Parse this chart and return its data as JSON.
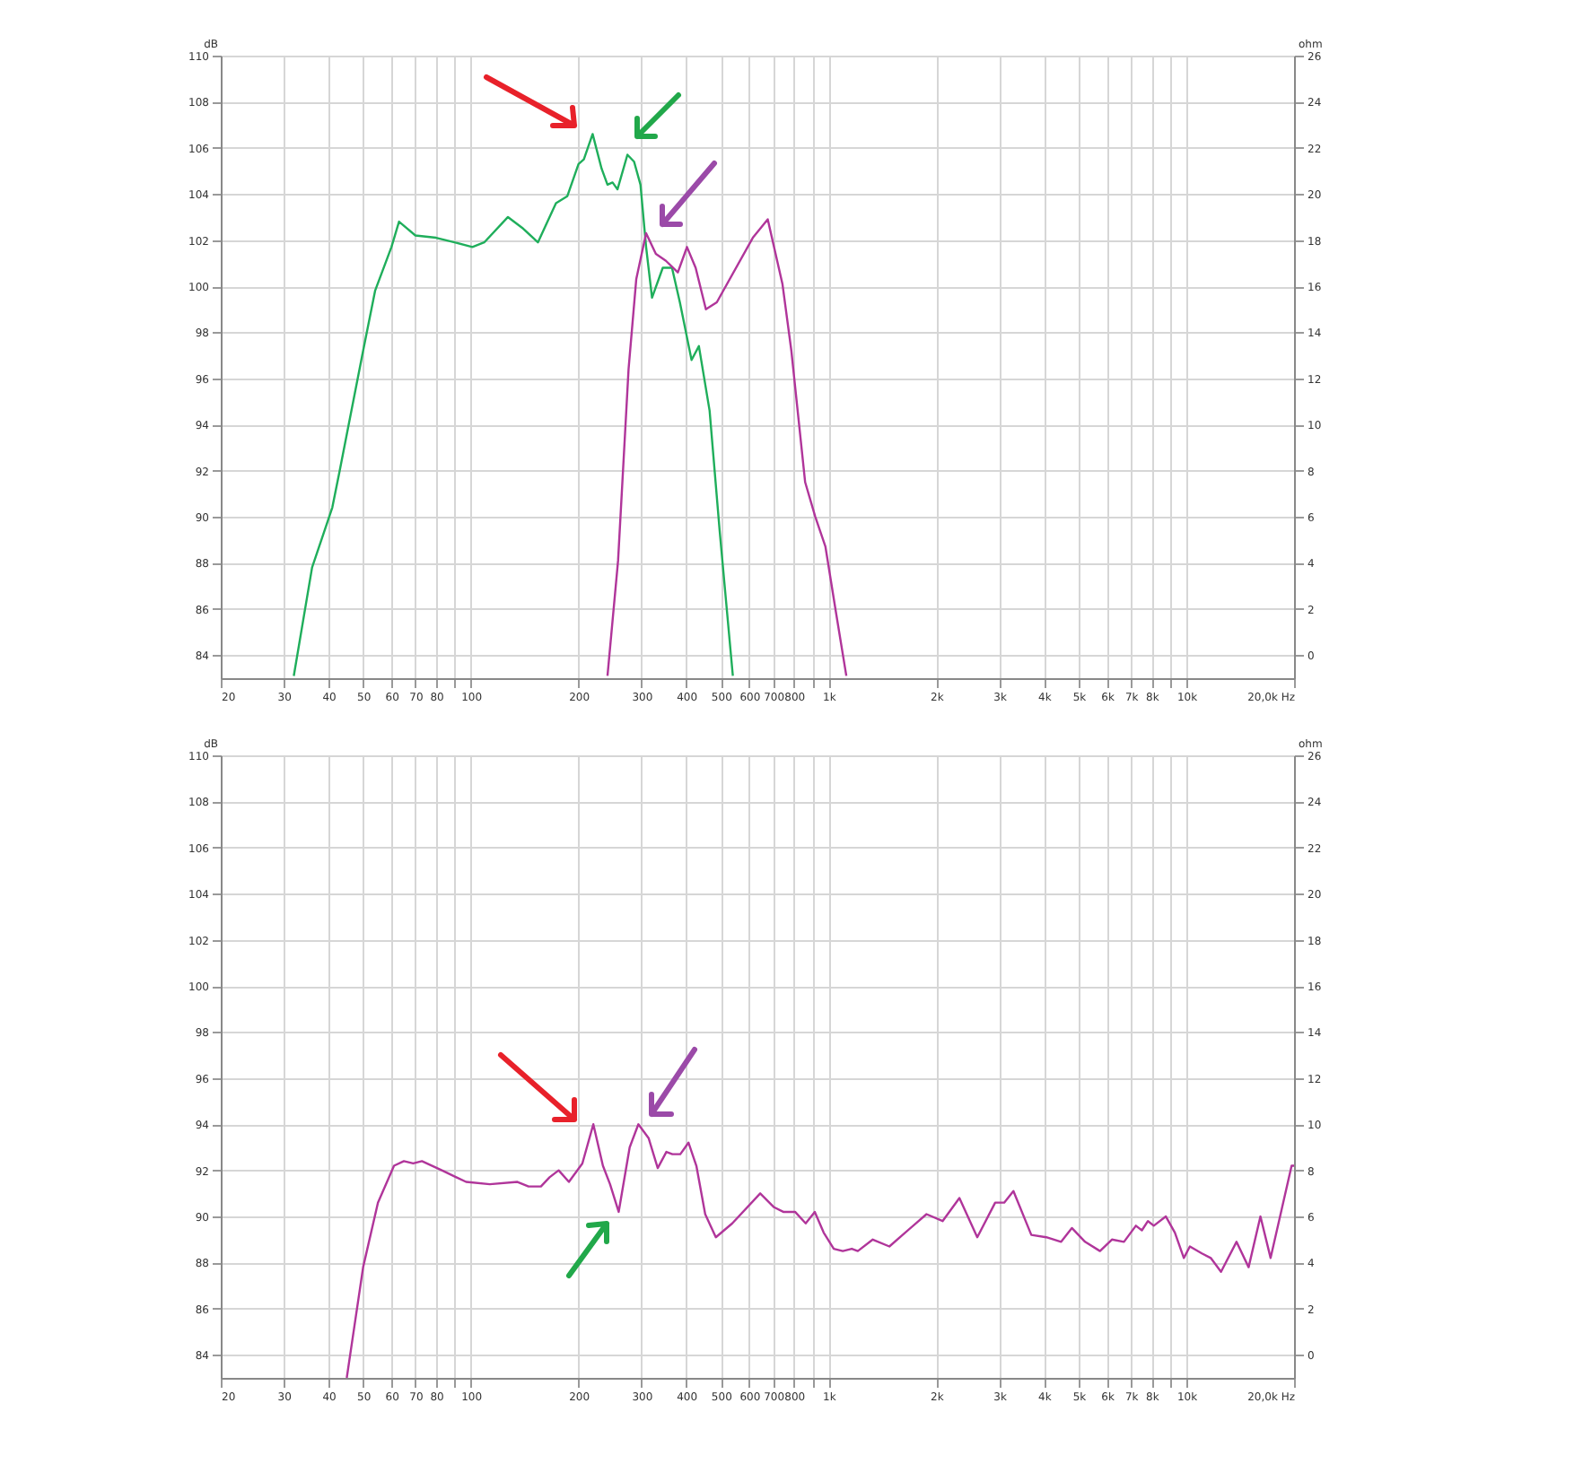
{
  "chart_data": [
    {
      "type": "line",
      "ylabel": "dB",
      "y2label": "ohm",
      "log": "x",
      "grid": true,
      "xlim": [
        20,
        20000
      ],
      "xticks": [
        20,
        30,
        40,
        50,
        60,
        70,
        80,
        {
          "value": 90,
          "label": null
        },
        {
          "value": 100,
          "label": "100"
        },
        200,
        300,
        400,
        500,
        600,
        700,
        800,
        {
          "value": 900,
          "label": null
        },
        {
          "value": 1000,
          "label": "1k"
        },
        {
          "value": 2000,
          "label": "2k"
        },
        {
          "value": 3000,
          "label": "3k"
        },
        {
          "value": 4000,
          "label": "4k"
        },
        {
          "value": 5000,
          "label": "5k"
        },
        {
          "value": 6000,
          "label": "6k"
        },
        {
          "value": 7000,
          "label": "7k"
        },
        {
          "value": 8000,
          "label": "8k"
        },
        {
          "value": 9000,
          "label": null
        },
        {
          "value": 10000,
          "label": "10k"
        },
        {
          "value": 20000,
          "label": "20,0k Hz"
        }
      ],
      "ylim": [
        83,
        110
      ],
      "yticks": [
        84,
        86,
        88,
        90,
        92,
        94,
        96,
        98,
        100,
        102,
        104,
        106,
        108,
        110
      ],
      "y2lim": [
        -1,
        26
      ],
      "y2ticks": [
        0,
        2,
        4,
        6,
        8,
        10,
        12,
        14,
        16,
        18,
        20,
        22,
        24,
        26
      ],
      "series": [
        {
          "color": "#1fae5b",
          "x": [
            32,
            36,
            41,
            43,
            50,
            54,
            60,
            63,
            70,
            80,
            90,
            101,
            109,
            127,
            140,
            154,
            173,
            186,
            200,
            207,
            219,
            232,
            241,
            249,
            257,
            274,
            286,
            298,
            309,
            321,
            344,
            365,
            384,
            414,
            434,
            465,
            496,
            540
          ],
          "values": [
            83.1,
            87.8,
            90.4,
            92.0,
            97.2,
            99.8,
            101.7,
            102.8,
            102.2,
            102.1,
            101.9,
            101.7,
            101.9,
            103.0,
            102.5,
            101.9,
            103.6,
            103.9,
            105.3,
            105.5,
            106.6,
            105.1,
            104.4,
            104.5,
            104.2,
            105.7,
            105.4,
            104.4,
            101.7,
            99.5,
            100.8,
            100.8,
            99.3,
            96.8,
            97.4,
            94.6,
            89.4,
            83.1
          ]
        },
        {
          "color": "#b0359a",
          "x": [
            241,
            258,
            276,
            290,
            309,
            329,
            351,
            379,
            402,
            425,
            454,
            487,
            614,
            676,
            743,
            787,
            860,
            918,
            980,
            1050,
            1121
          ],
          "values": [
            83.1,
            88.1,
            96.4,
            100.3,
            102.3,
            101.4,
            101.1,
            100.6,
            101.7,
            100.8,
            99.0,
            99.3,
            102.1,
            102.9,
            100.1,
            97.2,
            91.5,
            90.0,
            88.7,
            85.8,
            83.1
          ]
        }
      ]
    },
    {
      "type": "line",
      "ylabel": "dB",
      "y2label": "ohm",
      "log": "x",
      "grid": true,
      "xlim": [
        20,
        20000
      ],
      "xticks": [
        20,
        30,
        40,
        50,
        60,
        70,
        80,
        {
          "value": 90,
          "label": null
        },
        {
          "value": 100,
          "label": "100"
        },
        200,
        300,
        400,
        500,
        600,
        700,
        800,
        {
          "value": 900,
          "label": null
        },
        {
          "value": 1000,
          "label": "1k"
        },
        {
          "value": 2000,
          "label": "2k"
        },
        {
          "value": 3000,
          "label": "3k"
        },
        {
          "value": 4000,
          "label": "4k"
        },
        {
          "value": 5000,
          "label": "5k"
        },
        {
          "value": 6000,
          "label": "6k"
        },
        {
          "value": 7000,
          "label": "7k"
        },
        {
          "value": 8000,
          "label": "8k"
        },
        {
          "value": 9000,
          "label": null
        },
        {
          "value": 10000,
          "label": "10k"
        },
        {
          "value": 20000,
          "label": "20,0k Hz"
        }
      ],
      "ylim": [
        83,
        110
      ],
      "yticks": [
        84,
        86,
        88,
        90,
        92,
        94,
        96,
        98,
        100,
        102,
        104,
        106,
        108,
        110
      ],
      "y2lim": [
        -1,
        26
      ],
      "y2ticks": [
        0,
        2,
        4,
        6,
        8,
        10,
        12,
        14,
        16,
        18,
        20,
        22,
        24,
        26
      ],
      "series": [
        {
          "color": "#b0359a",
          "x": [
            45,
            50,
            55,
            61,
            65,
            69,
            73,
            83,
            97,
            113,
            135,
            145,
            157,
            166,
            176,
            188,
            205,
            220,
            234,
            245,
            259,
            278,
            294,
            314,
            333,
            352,
            366,
            385,
            406,
            427,
            452,
            484,
            538,
            644,
            704,
            747,
            806,
            863,
            915,
            969,
            1034,
            1096,
            1161,
            1207,
            1329,
            1479,
            1610,
            1878,
            2083,
            2321,
            2604,
            2922,
            3096,
            3286,
            3687,
            4059,
            4467,
            4786,
            5211,
            5736,
            6194,
            6693,
            7228,
            7512,
            7810,
            8110,
            8765,
            9290,
            9840,
            10230,
            11050,
            11700,
            12500,
            13810,
            14930,
            16110,
            17200,
            19690,
            20000
          ],
          "values": [
            83.0,
            87.8,
            90.6,
            92.2,
            92.4,
            92.3,
            92.4,
            92.0,
            91.5,
            91.4,
            91.5,
            91.3,
            91.3,
            91.7,
            92.0,
            91.5,
            92.3,
            94.0,
            92.2,
            91.4,
            90.2,
            93.0,
            94.0,
            93.4,
            92.1,
            92.8,
            92.7,
            92.7,
            93.2,
            92.2,
            90.1,
            89.1,
            89.7,
            91.0,
            90.4,
            90.2,
            90.2,
            89.7,
            90.2,
            89.3,
            88.6,
            88.5,
            88.6,
            88.5,
            89.0,
            88.7,
            89.2,
            90.1,
            89.8,
            90.8,
            89.1,
            90.6,
            90.6,
            91.1,
            89.2,
            89.1,
            88.9,
            89.5,
            88.9,
            88.5,
            89.0,
            88.9,
            89.6,
            89.4,
            89.8,
            89.6,
            90.0,
            89.3,
            88.2,
            88.7,
            88.4,
            88.2,
            87.6,
            88.9,
            87.8,
            90.0,
            88.2,
            92.2,
            92.2
          ]
        }
      ]
    }
  ]
}
